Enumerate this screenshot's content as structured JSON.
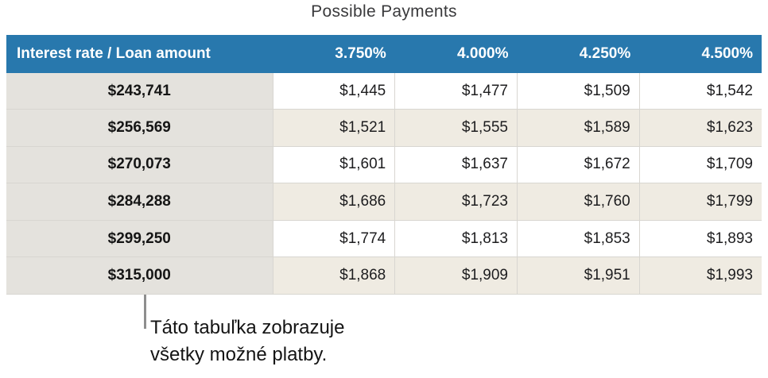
{
  "title": "Possible Payments",
  "colors": {
    "header_bg": "#2878ad",
    "header_text": "#ffffff",
    "label_bg": "#e4e2dd",
    "alt_bg": "#efebe2",
    "row_bg": "#ffffff",
    "border": "#d8d6d1",
    "title_text": "#3a3a3c",
    "body_text": "#1d1d1f",
    "callout_line": "#8e8e8e",
    "callout_text": "#141414"
  },
  "table": {
    "header": {
      "label": "Interest rate / Loan amount",
      "rates": [
        "3.750%",
        "4.000%",
        "4.250%",
        "4.500%"
      ]
    },
    "rows": [
      {
        "amount": "$243,741",
        "payments": [
          "$1,445",
          "$1,477",
          "$1,509",
          "$1,542"
        ]
      },
      {
        "amount": "$256,569",
        "payments": [
          "$1,521",
          "$1,555",
          "$1,589",
          "$1,623"
        ]
      },
      {
        "amount": "$270,073",
        "payments": [
          "$1,601",
          "$1,637",
          "$1,672",
          "$1,709"
        ]
      },
      {
        "amount": "$284,288",
        "payments": [
          "$1,686",
          "$1,723",
          "$1,760",
          "$1,799"
        ]
      },
      {
        "amount": "$299,250",
        "payments": [
          "$1,774",
          "$1,813",
          "$1,853",
          "$1,893"
        ]
      },
      {
        "amount": "$315,000",
        "payments": [
          "$1,868",
          "$1,909",
          "$1,951",
          "$1,993"
        ]
      }
    ]
  },
  "callout": {
    "line1": "Táto tabuľka zobrazuje",
    "line2": "všetky možné platby."
  },
  "chart_data": {
    "type": "table",
    "title": "Possible Payments",
    "columns": [
      "Interest rate / Loan amount",
      "3.750%",
      "4.000%",
      "4.250%",
      "4.500%"
    ],
    "rows": [
      [
        "$243,741",
        "$1,445",
        "$1,477",
        "$1,509",
        "$1,542"
      ],
      [
        "$256,569",
        "$1,521",
        "$1,555",
        "$1,589",
        "$1,623"
      ],
      [
        "$270,073",
        "$1,601",
        "$1,637",
        "$1,672",
        "$1,709"
      ],
      [
        "$284,288",
        "$1,686",
        "$1,723",
        "$1,760",
        "$1,799"
      ],
      [
        "$299,250",
        "$1,774",
        "$1,813",
        "$1,853",
        "$1,893"
      ],
      [
        "$315,000",
        "$1,868",
        "$1,909",
        "$1,951",
        "$1,993"
      ]
    ],
    "annotation": "Táto tabuľka zobrazuje všetky možné platby.",
    "layout_hints": {
      "header_fill": "#2878ad",
      "label_column_fill": "#e4e2dd",
      "alternate_row_fill": "#efebe2",
      "row_striping": "even rows shaded"
    }
  }
}
